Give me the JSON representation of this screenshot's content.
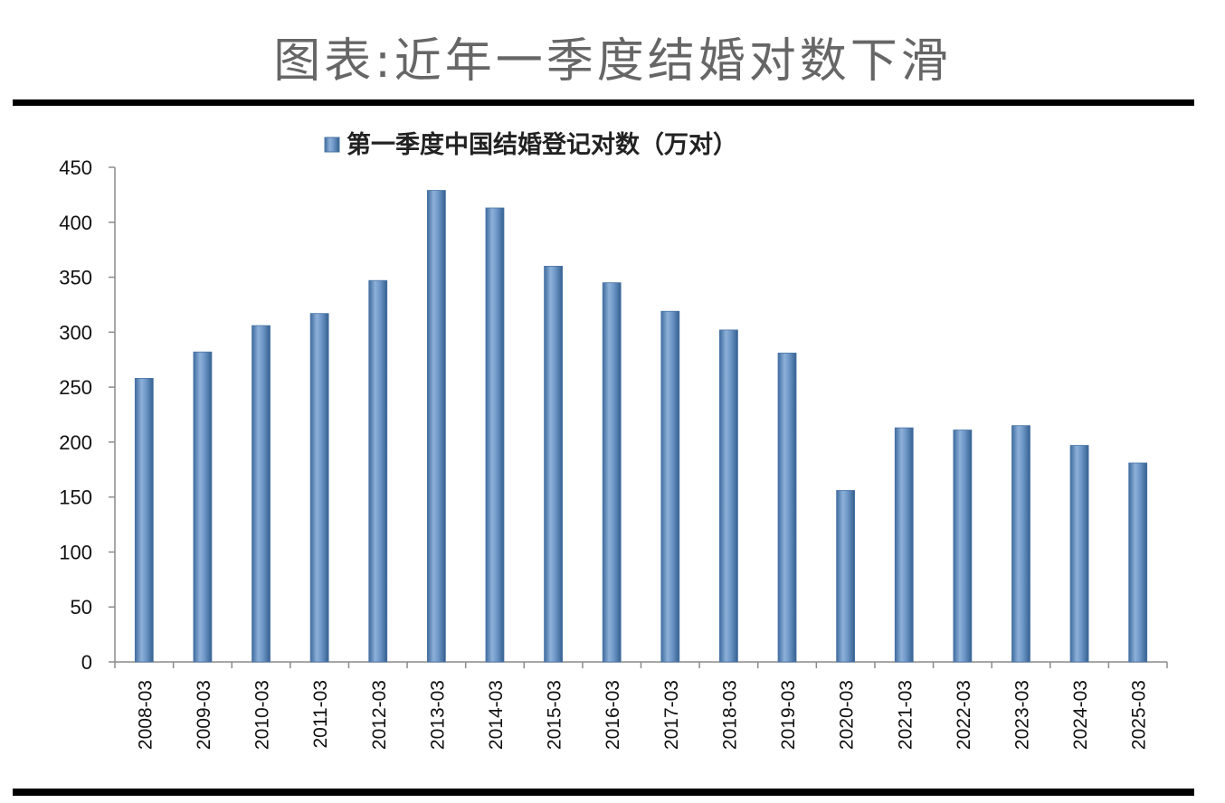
{
  "page": {
    "title": "图表:近年一季度结婚对数下滑"
  },
  "chart_data": {
    "type": "bar",
    "title": "",
    "legend": {
      "label": "第一季度中国结婚登记对数（万对）",
      "position": "top"
    },
    "categories": [
      "2008-03",
      "2009-03",
      "2010-03",
      "2011-03",
      "2012-03",
      "2013-03",
      "2014-03",
      "2015-03",
      "2016-03",
      "2017-03",
      "2018-03",
      "2019-03",
      "2020-03",
      "2021-03",
      "2022-03",
      "2023-03",
      "2024-03",
      "2025-03"
    ],
    "series": [
      {
        "name": "第一季度中国结婚登记对数（万对）",
        "values": [
          258,
          282,
          306,
          317,
          347,
          429,
          413,
          360,
          345,
          319,
          302,
          281,
          156,
          213,
          211,
          215,
          197,
          181
        ],
        "color": "#5b86ba"
      }
    ],
    "ylim": [
      0,
      450
    ],
    "yticks": [
      0,
      50,
      100,
      150,
      200,
      250,
      300,
      350,
      400,
      450
    ],
    "xlabel": "",
    "ylabel": "",
    "grid": false
  }
}
